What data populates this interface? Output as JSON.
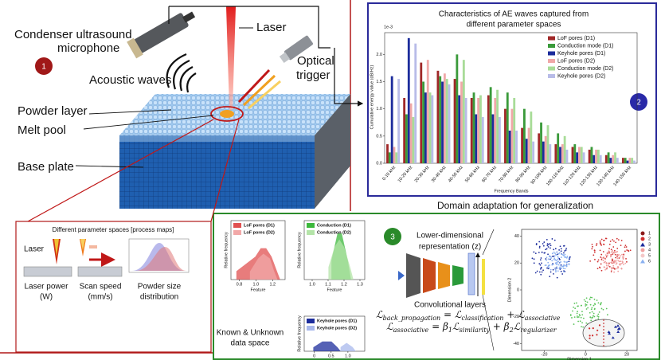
{
  "panel1": {
    "badge": "1",
    "microphone": [
      "Condenser ultrasound",
      "microphone"
    ],
    "laser": "Laser",
    "optical_trigger": [
      "Optical",
      "trigger"
    ],
    "acoustic_waves": "Acoustic waves",
    "powder_layer": "Powder layer",
    "melt_pool": "Melt pool",
    "base_plate": "Base plate",
    "process_maps": {
      "title": "Different parameter spaces [process maps]",
      "laser": "Laser",
      "laser_power": [
        "Laser power",
        "(W)"
      ],
      "scan_speed": [
        "Scan speed",
        "(mm/s)"
      ],
      "powder_size": [
        "Powder size",
        "distribution"
      ]
    }
  },
  "panel2": {
    "badge": "2",
    "chart": {
      "type": "bar",
      "title": [
        "Characteristics of AE waves captured from",
        "different parameter spaces"
      ],
      "exponent": "1e-3",
      "ylabel": "Cumulative energy value (dB/Hz)",
      "xlabel": "Frequency Bands",
      "categories": [
        "0-10 kHz",
        "10-20 kHz",
        "20-30 kHz",
        "30-40 kHz",
        "40-50 kHz",
        "50-60 kHz",
        "60-70 kHz",
        "70-80 kHz",
        "80-90 kHz",
        "90-100 kHz",
        "100-110 kHz",
        "110-120 kHz",
        "120-130 kHz",
        "130-140 kHz",
        "140-150 kHz"
      ],
      "series": [
        {
          "name": "LoF pores (D1)",
          "color": "#a02828",
          "values": [
            0.35,
            1.2,
            1.85,
            1.7,
            1.55,
            1.2,
            1.25,
            1.0,
            0.65,
            0.55,
            0.35,
            0.3,
            0.25,
            0.15,
            0.1
          ]
        },
        {
          "name": "Conduction mode (D1)",
          "color": "#3a9a3a",
          "values": [
            0.2,
            0.9,
            1.5,
            1.6,
            2.0,
            1.3,
            1.4,
            1.3,
            1.0,
            0.75,
            0.55,
            0.35,
            0.3,
            0.2,
            0.1
          ]
        },
        {
          "name": "Keyhole pores (D1)",
          "color": "#1c2c9c",
          "values": [
            1.6,
            2.3,
            1.3,
            1.5,
            1.25,
            0.9,
            0.9,
            0.6,
            0.45,
            0.4,
            0.3,
            0.2,
            0.15,
            0.1,
            0.05
          ]
        },
        {
          "name": "LoF pores (D2)",
          "color": "#f0a8a8",
          "values": [
            0.3,
            1.1,
            1.9,
            1.65,
            1.5,
            1.2,
            1.2,
            1.0,
            0.65,
            0.5,
            0.35,
            0.3,
            0.25,
            0.15,
            0.1
          ]
        },
        {
          "name": "Conduction mode (D2)",
          "color": "#a8dc98",
          "values": [
            0.2,
            0.85,
            1.3,
            1.55,
            1.9,
            1.25,
            1.35,
            1.2,
            0.95,
            0.7,
            0.5,
            0.3,
            0.25,
            0.2,
            0.1
          ]
        },
        {
          "name": "Keyhole pores (D2)",
          "color": "#b8bce8",
          "values": [
            1.55,
            2.2,
            1.25,
            1.45,
            1.2,
            0.85,
            0.85,
            0.6,
            0.4,
            0.35,
            0.25,
            0.2,
            0.15,
            0.1,
            0.05
          ]
        }
      ],
      "ylim": [
        0,
        2.4
      ],
      "yticks": [
        {
          "value": 0,
          "label": "0.0"
        },
        0.5,
        {
          "value": 1,
          "label": "1.0"
        },
        1.5,
        {
          "value": 2,
          "label": "2.0"
        }
      ],
      "legend": "upper right"
    }
  },
  "domain_adaptation": "Domain adaptation for generalization",
  "panel3": {
    "badge": "3",
    "representation": [
      "Lower-dimensional",
      "representation (z)"
    ],
    "conv_layers": "Convolutional layers",
    "data_space": [
      "Known & Unknown",
      "data space"
    ],
    "histograms": [
      {
        "legend": [
          "LoF pores (D1)",
          "LoF pores (D2)"
        ],
        "colors": [
          "#e05050",
          "#f2a8a8"
        ],
        "xticks": [
          0.8,
          {
            "value": 1.0,
            "label": "1.0"
          },
          1.2
        ],
        "xlim": [
          0.7,
          1.35
        ],
        "ylabel": "Relative frequency",
        "xlabel": "Feature"
      },
      {
        "legend": [
          "Conduction (D1)",
          "Conduction (D2)"
        ],
        "colors": [
          "#3cb83c",
          "#b4e4a8"
        ],
        "xticks": [
          {
            "value": 1.0,
            "label": "1.0"
          },
          1.1,
          1.2,
          1.3
        ],
        "xlim": [
          0.95,
          1.33
        ],
        "ylabel": "Relative frequency",
        "xlabel": "Feature"
      },
      {
        "legend": [
          "Keyhole pores (D1)",
          "Keyhole pores (D2)"
        ],
        "colors": [
          "#1c2c9c",
          "#a8b8ec"
        ],
        "xticks": [
          0,
          0.5,
          {
            "value": 1.0,
            "label": "1.0"
          }
        ],
        "xlim": [
          -0.3,
          1.5
        ],
        "ylabel": "Relative frequency"
      }
    ],
    "tsne": {
      "xlabel": "Dimension 1",
      "ylabel": "Dimension 2",
      "xticks": [
        -20,
        0,
        20
      ],
      "xlim": [
        -31,
        25
      ],
      "yticks": [
        -40,
        -20,
        0,
        20,
        40
      ],
      "ylim": [
        -45,
        45
      ],
      "legend": [
        "1",
        "2",
        "3",
        "4",
        "5",
        "6"
      ],
      "colors": [
        "#8b1a1a",
        "#d03030",
        "#1c2c9c",
        "#f0a0a0",
        "#f4c8c8",
        "#8ab0f0"
      ]
    },
    "equations": [
      [
        {
          "base": "ℒ",
          "sub": "back_propagation"
        },
        {
          "op": " = "
        },
        {
          "base": "ℒ",
          "sub": "classification"
        },
        {
          "op": " + "
        },
        {
          "base": "ℒ",
          "sub": "associative"
        }
      ],
      [
        {
          "base": "ℒ",
          "sub": "associative"
        },
        {
          "op": " = "
        },
        {
          "base": "β",
          "sub": "1"
        },
        {
          "base": "ℒ",
          "sub": "similarity"
        },
        {
          "op": " + "
        },
        {
          "base": "β",
          "sub": "2"
        },
        {
          "base": "ℒ",
          "sub": "regularizer"
        }
      ]
    ]
  }
}
